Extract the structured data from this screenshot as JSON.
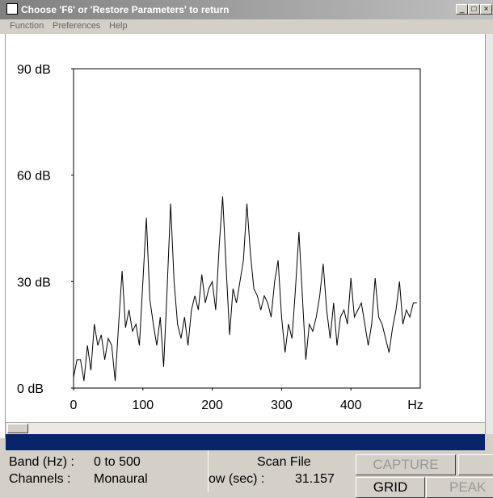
{
  "window": {
    "title": "Choose 'F6' or 'Restore Parameters' to return"
  },
  "menu": [
    "Function",
    "Preferences",
    "Help"
  ],
  "chart_data": {
    "type": "line",
    "xlim": [
      0,
      500
    ],
    "ylim": [
      0,
      90
    ],
    "xticks": [
      0,
      100,
      200,
      300,
      400
    ],
    "yticks": [
      {
        "value": 0,
        "label": "0 dB"
      },
      {
        "value": 30,
        "label": "30 dB"
      },
      {
        "value": 60,
        "label": "60 dB"
      },
      {
        "value": 90,
        "label": "90 dB"
      }
    ],
    "x_label": "Hz",
    "color": "#000000",
    "x": [
      0,
      5,
      10,
      15,
      20,
      25,
      30,
      35,
      40,
      45,
      50,
      55,
      60,
      65,
      70,
      75,
      80,
      85,
      90,
      95,
      100,
      105,
      110,
      115,
      120,
      125,
      130,
      135,
      140,
      145,
      150,
      155,
      160,
      165,
      170,
      175,
      180,
      185,
      190,
      195,
      200,
      205,
      210,
      215,
      220,
      225,
      230,
      235,
      240,
      245,
      250,
      255,
      260,
      265,
      270,
      275,
      280,
      285,
      290,
      295,
      300,
      305,
      310,
      315,
      320,
      325,
      330,
      335,
      340,
      345,
      350,
      355,
      360,
      365,
      370,
      375,
      380,
      385,
      390,
      395,
      400,
      405,
      410,
      415,
      420,
      425,
      430,
      435,
      440,
      445,
      450,
      455,
      460,
      465,
      470,
      475,
      480,
      485,
      490,
      495
    ],
    "values": [
      3,
      8,
      8,
      2,
      12,
      5,
      18,
      12,
      15,
      8,
      14,
      12,
      2,
      18,
      33,
      17,
      22,
      16,
      18,
      12,
      30,
      48,
      25,
      18,
      12,
      20,
      6,
      28,
      52,
      30,
      18,
      14,
      20,
      12,
      22,
      26,
      22,
      32,
      24,
      28,
      30,
      22,
      40,
      54,
      34,
      15,
      28,
      24,
      30,
      36,
      52,
      38,
      28,
      26,
      22,
      26,
      24,
      20,
      30,
      36,
      20,
      10,
      18,
      14,
      28,
      44,
      26,
      8,
      18,
      16,
      20,
      26,
      35,
      22,
      14,
      24,
      12,
      20,
      22,
      18,
      31,
      20,
      22,
      24,
      18,
      12,
      18,
      31,
      20,
      18,
      14,
      10,
      17,
      22,
      30,
      18,
      22,
      20,
      24,
      24
    ]
  },
  "status": {
    "band_label": "Band (Hz) :",
    "band_value": "0 to 500",
    "channels_label": "Channels :",
    "channels_value": "Monaural",
    "mode": "Scan File",
    "window_label": "ow (sec) :",
    "window_value": "31.157"
  },
  "buttons": [
    "CAPTURE",
    "GRID",
    "PEAK"
  ]
}
